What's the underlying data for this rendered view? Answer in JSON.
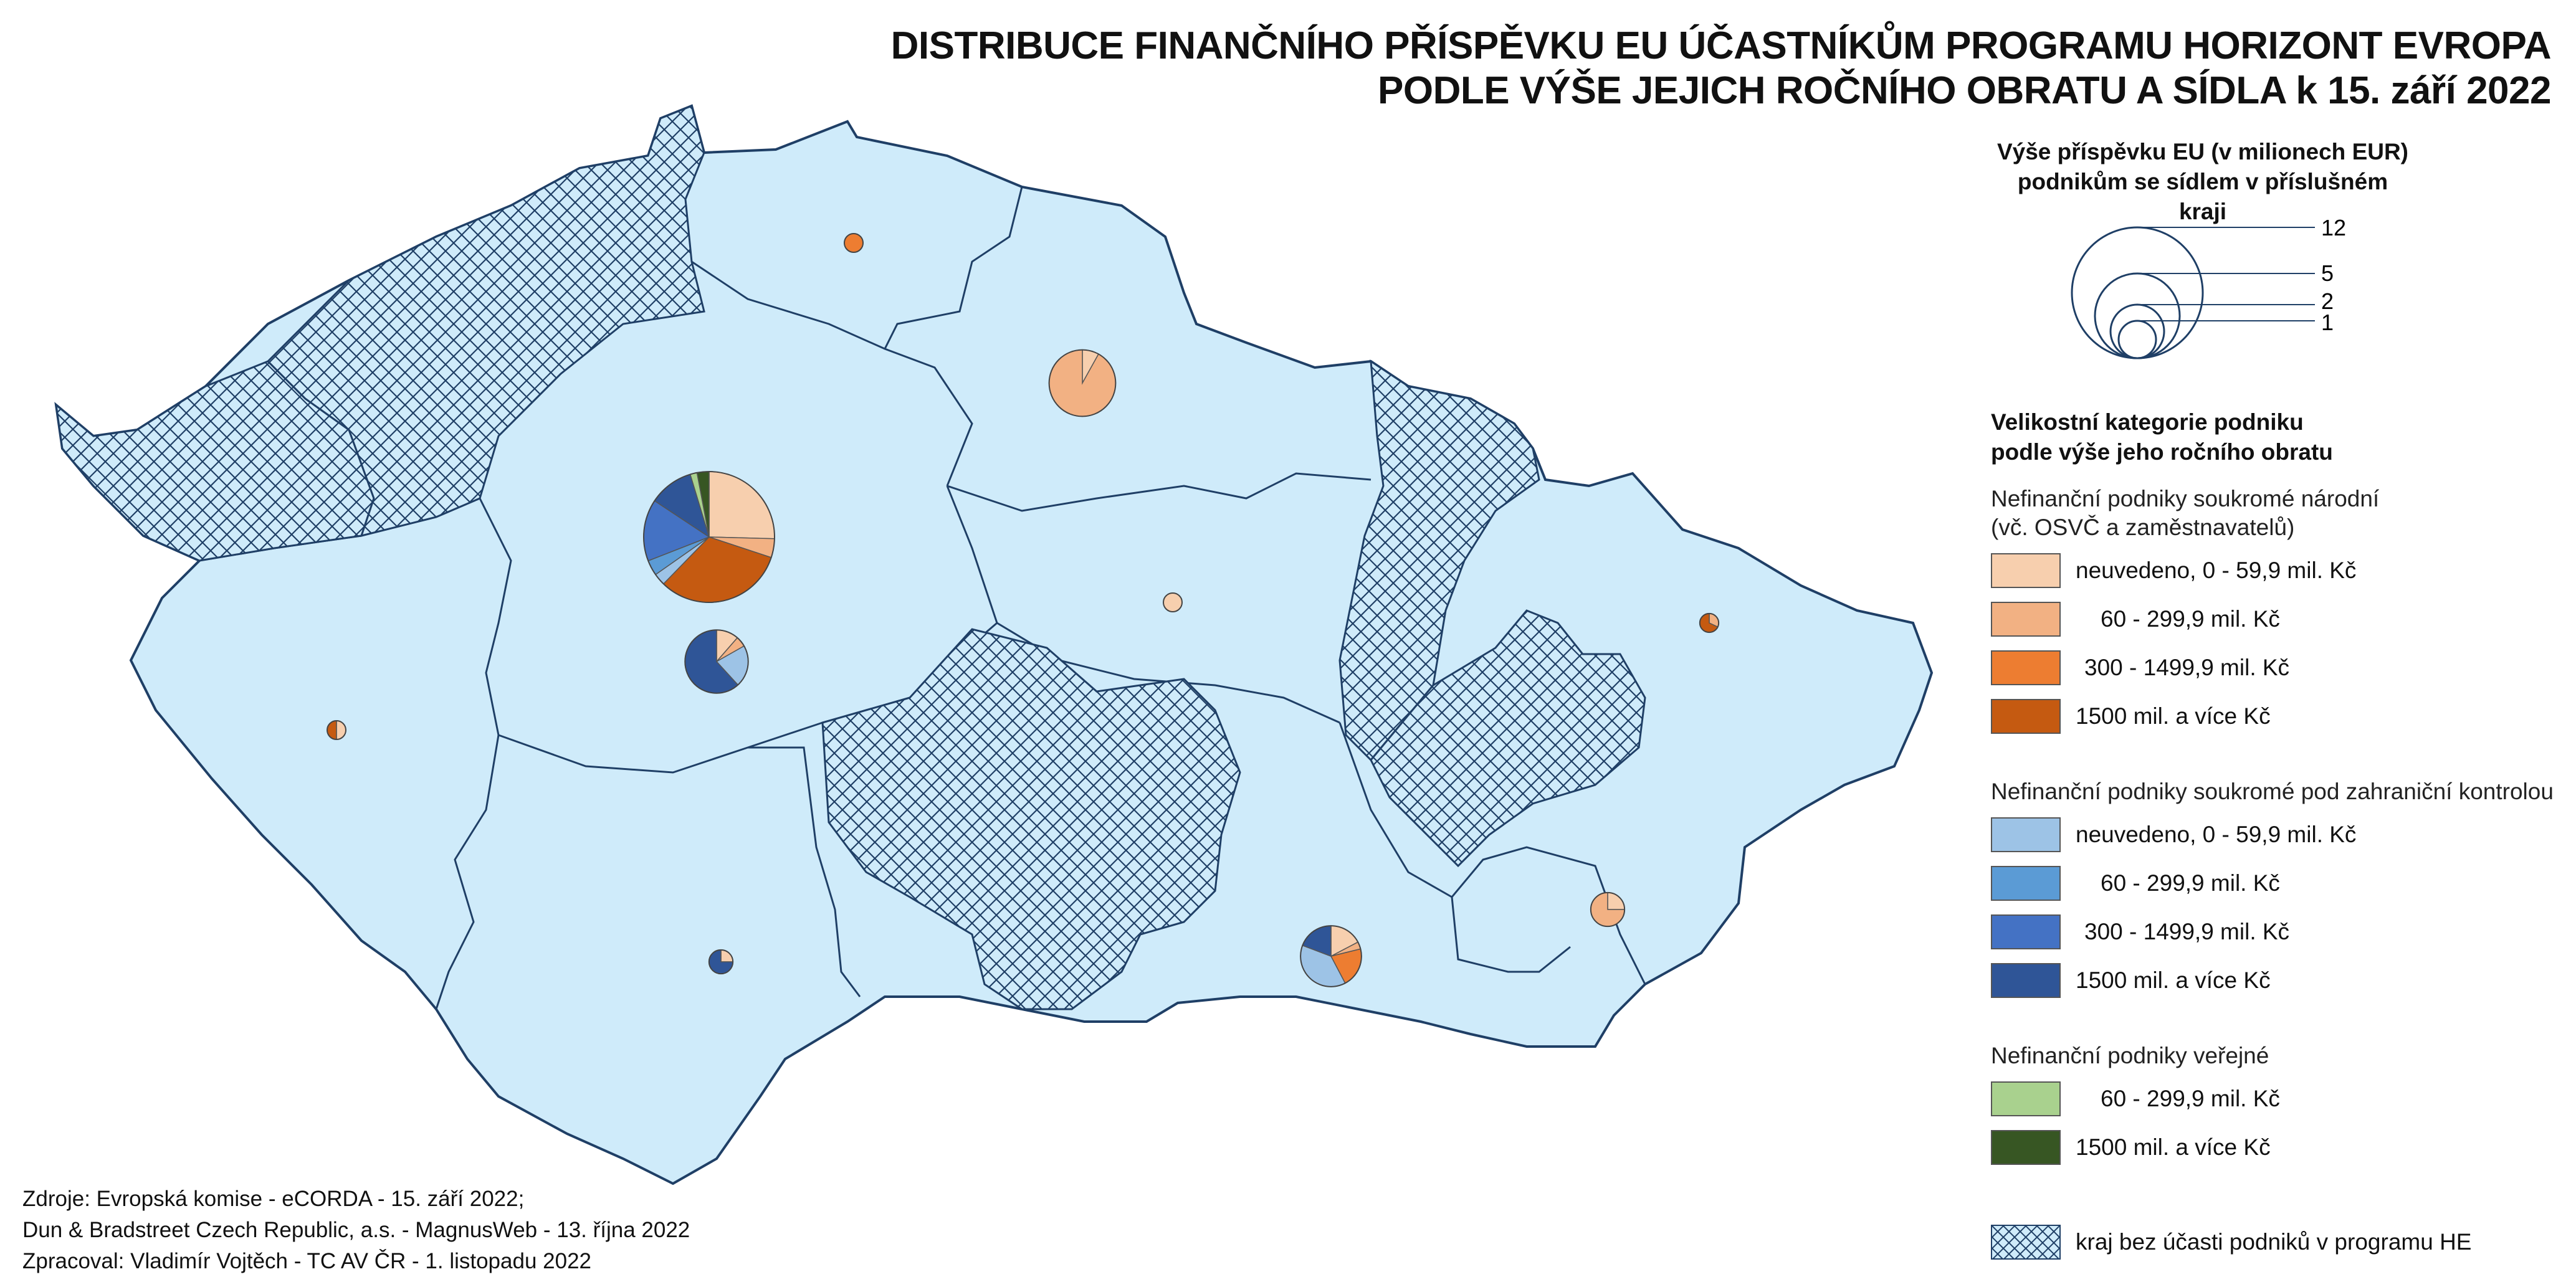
{
  "title": {
    "line1": "DISTRIBUCE FINANČNÍHO PŘÍSPĚVKU EU ÚČASTNÍKŮM PROGRAMU HORIZONT EVROPA",
    "line2": "PODLE VÝŠE JEJICH ROČNÍHO OBRATU A SÍDLA k 15. září 2022"
  },
  "legend": {
    "size_heading_1": "Výše příspěvku EU (v milionech EUR)",
    "size_heading_2": "podnikům se sídlem v příslušném kraji",
    "size_values": [
      "12",
      "5",
      "2",
      "1"
    ],
    "category_heading_1": "Velikostní kategorie podniku",
    "category_heading_2": "podle výše jeho ročního obratu",
    "groups": [
      {
        "title": "Nefinanční podniky soukromé národní",
        "subtitle": "(vč. OSVČ a zaměstnavatelů)",
        "items": [
          {
            "label": "neuvedeno, 0 - 59,9 mil. Kč",
            "color": "#f7cfae"
          },
          {
            "label": "60 -   299,9 mil. Kč",
            "color": "#f2b183"
          },
          {
            "label": "300 - 1499,9 mil. Kč",
            "color": "#ed7d31"
          },
          {
            "label": "1500 mil. a více Kč",
            "color": "#c55a11"
          }
        ]
      },
      {
        "title": "Nefinanční podniky soukromé pod zahraniční kontrolou",
        "subtitle": "",
        "items": [
          {
            "label": "neuvedeno, 0 - 59,9 mil. Kč",
            "color": "#9dc3e6"
          },
          {
            "label": "60 -   299,9 mil. Kč",
            "color": "#5b9bd5"
          },
          {
            "label": "300 - 1499,9 mil. Kč",
            "color": "#4472c4"
          },
          {
            "label": "1500 mil. a více Kč",
            "color": "#2f5597"
          }
        ]
      },
      {
        "title": "Nefinanční podniky veřejné",
        "subtitle": "",
        "items": [
          {
            "label": "60 -   299,9 mil. Kč",
            "color": "#a9d18e"
          },
          {
            "label": "1500 mil. a více Kč",
            "color": "#375623"
          }
        ]
      }
    ],
    "hatch_label": "kraj bez účasti podniků v programu HE"
  },
  "credits": [
    "Zdroje: Evropská komise - eCORDA - 15. září 2022;",
    "Dun & Bradstreet Czech Republic, a.s. - MagnusWeb - 13. října 2022",
    "Zpracoval: Vladimír Vojtěch - TC AV ČR - 1. listopadu 2022"
  ],
  "colors": {
    "map_fill": "#cfebfa",
    "border": "#1f3f66",
    "hatch": "#1f3f66"
  },
  "pies": [
    {
      "id": "praha",
      "total": 12,
      "slices": [
        {
          "cat": "nat0",
          "v": 3.0
        },
        {
          "cat": "nat1",
          "v": 0.55
        },
        {
          "cat": "nat3",
          "v": 3.8
        },
        {
          "cat": "for0",
          "v": 0.35
        },
        {
          "cat": "for1",
          "v": 0.45
        },
        {
          "cat": "for2",
          "v": 1.8
        },
        {
          "cat": "for3",
          "v": 1.3
        },
        {
          "cat": "pub1",
          "v": 0.2
        },
        {
          "cat": "pub3",
          "v": 0.35
        }
      ]
    },
    {
      "id": "stredocesky",
      "total": 2.8,
      "slices": [
        {
          "cat": "nat0",
          "v": 0.32
        },
        {
          "cat": "nat1",
          "v": 0.15
        },
        {
          "cat": "for0",
          "v": 0.6
        },
        {
          "cat": "for3",
          "v": 1.73
        }
      ]
    },
    {
      "id": "kralovehradecky",
      "total": 3.1,
      "slices": [
        {
          "cat": "nat0",
          "v": 0.25
        },
        {
          "cat": "nat1",
          "v": 2.85
        }
      ]
    },
    {
      "id": "liberecky",
      "total": 0.1,
      "slices": [
        {
          "cat": "nat2",
          "v": 0.1
        }
      ]
    },
    {
      "id": "pardubicky",
      "total": 0.2,
      "slices": [
        {
          "cat": "nat0",
          "v": 0.2
        }
      ]
    },
    {
      "id": "plzensky",
      "total": 0.2,
      "slices": [
        {
          "cat": "nat0",
          "v": 0.1
        },
        {
          "cat": "nat3",
          "v": 0.1
        }
      ]
    },
    {
      "id": "jihocesky",
      "total": 0.4,
      "slices": [
        {
          "cat": "nat0",
          "v": 0.1
        },
        {
          "cat": "for3",
          "v": 0.3
        }
      ]
    },
    {
      "id": "jihomoravsky",
      "total": 2.6,
      "slices": [
        {
          "cat": "nat0",
          "v": 0.45
        },
        {
          "cat": "nat1",
          "v": 0.1
        },
        {
          "cat": "nat2",
          "v": 0.55
        },
        {
          "cat": "for0",
          "v": 1.0
        },
        {
          "cat": "for3",
          "v": 0.5
        }
      ]
    },
    {
      "id": "olomoucky",
      "total": 0.25,
      "slices": [
        {
          "cat": "nat1",
          "v": 0.08
        },
        {
          "cat": "nat3",
          "v": 0.17
        }
      ]
    },
    {
      "id": "zlinsky",
      "total": 0.8,
      "slices": [
        {
          "cat": "nat0",
          "v": 0.2
        },
        {
          "cat": "nat1",
          "v": 0.6
        }
      ]
    }
  ]
}
